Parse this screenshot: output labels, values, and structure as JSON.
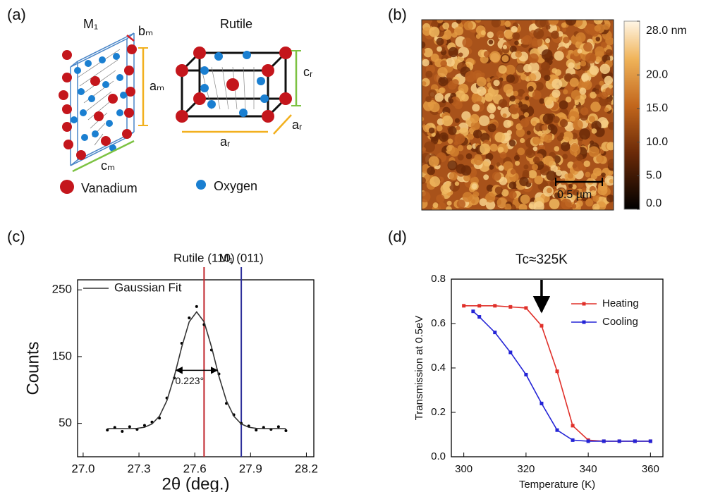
{
  "panel_labels": [
    "(a)",
    "(b)",
    "(c)",
    "(d)"
  ],
  "panel_a": {
    "m1_title": "M₁",
    "rutile_title": "Rutile",
    "b_m": "bₘ",
    "a_m": "aₘ",
    "c_m": "cₘ",
    "c_r": "cᵣ",
    "a_r_side": "aᵣ",
    "a_r_bottom": "aᵣ",
    "vanadium": "Vanadium",
    "oxygen": "Oxygen"
  },
  "panel_b": {
    "scale_bar": "0.5 µm",
    "colorbar_range": [
      0,
      28
    ],
    "colorbar_ticks": [
      {
        "value": 28,
        "label": "28.0 nm"
      },
      {
        "value": 20,
        "label": "20.0"
      },
      {
        "value": 15,
        "label": "15.0"
      },
      {
        "value": 10,
        "label": "10.0"
      },
      {
        "value": 5,
        "label": "5.0"
      },
      {
        "value": 0,
        "label": "0.0"
      }
    ]
  },
  "chart_data": [
    {
      "type": "line",
      "xlabel": "2θ (deg.)",
      "ylabel": "Counts",
      "xlim": [
        26.97,
        28.24
      ],
      "ylim": [
        0,
        265
      ],
      "xticks": [
        {
          "value": 27,
          "label": "27.0"
        },
        27.3,
        27.6,
        27.9,
        28.2
      ],
      "yticks": [
        50,
        150,
        250
      ],
      "x": [
        27.13,
        27.17,
        27.21,
        27.25,
        27.29,
        27.33,
        27.37,
        27.41,
        27.45,
        27.49,
        27.53,
        27.57,
        27.61,
        27.65,
        27.69,
        27.73,
        27.77,
        27.81,
        27.85,
        27.89,
        27.93,
        27.97,
        28.01,
        28.05,
        28.09
      ],
      "series": [
        {
          "color": "#000000",
          "marker": "dot",
          "values": [
            40,
            44,
            38,
            45,
            41,
            47,
            52,
            58,
            88,
            118,
            170,
            208,
            225,
            198,
            160,
            124,
            80,
            63,
            50,
            46,
            40,
            44,
            41,
            45,
            39
          ]
        },
        {
          "name": "Gaussian Fit",
          "color": "#333333",
          "values": [
            42,
            42,
            42,
            42.1,
            42.6,
            44.2,
            49.1,
            60.8,
            84,
            120.4,
            164.5,
            202.1,
            217,
            202.1,
            164.5,
            120.4,
            84,
            60.8,
            49.1,
            44.2,
            42.6,
            42.1,
            42,
            42,
            42
          ]
        }
      ],
      "reference_lines": [
        {
          "label": "Rutile (110)",
          "x": 27.65,
          "color": "#c0272d"
        },
        {
          "label": "M₁ (011)",
          "x": 27.85,
          "color": "#2b2e9a"
        }
      ],
      "fwhm": {
        "value": 0.223,
        "label": "0.223°"
      },
      "legend": "upper left"
    },
    {
      "type": "line",
      "xlabel": "Temperature (K)",
      "ylabel": "Transmission at 0.5eV",
      "xlim": [
        296,
        364
      ],
      "ylim": [
        0,
        0.8
      ],
      "xticks": [
        300,
        320,
        340,
        360
      ],
      "yticks": [
        {
          "value": 0,
          "label": "0.0"
        },
        0.2,
        0.4,
        0.6,
        0.8
      ],
      "series": [
        {
          "name": "Heating",
          "color": "#e0302a",
          "marker": "square",
          "x": [
            300,
            305,
            310,
            315,
            320,
            325,
            330,
            335,
            340,
            345,
            350,
            355,
            360
          ],
          "values": [
            0.68,
            0.68,
            0.68,
            0.675,
            0.67,
            0.59,
            0.385,
            0.14,
            0.075,
            0.07,
            0.07,
            0.07,
            0.07
          ]
        },
        {
          "name": "Cooling",
          "color": "#2424d6",
          "marker": "square",
          "x": [
            303,
            305,
            310,
            315,
            320,
            325,
            330,
            335,
            340,
            345,
            350,
            355,
            360
          ],
          "values": [
            0.655,
            0.63,
            0.56,
            0.47,
            0.37,
            0.24,
            0.12,
            0.075,
            0.07,
            0.07,
            0.07,
            0.07,
            0.07
          ]
        }
      ],
      "annotation": {
        "label": "Tc≈325K",
        "x": 325
      },
      "legend": "upper right"
    }
  ]
}
